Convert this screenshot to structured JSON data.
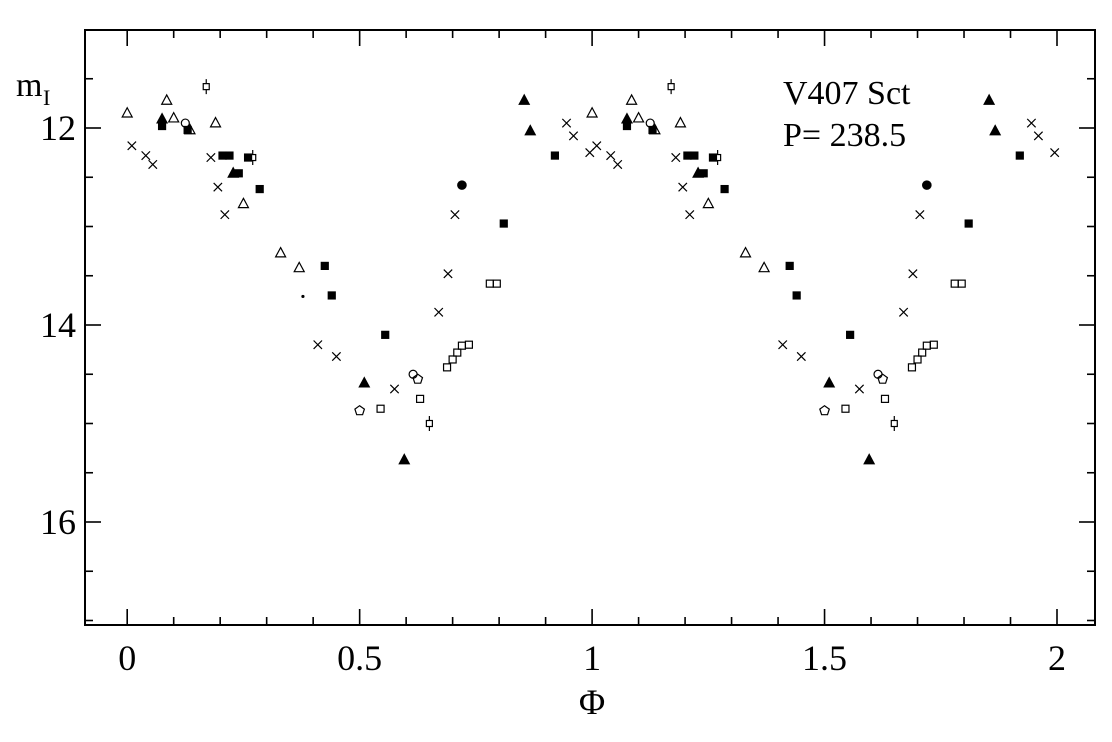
{
  "chart_data": {
    "type": "scatter",
    "title": "V407 Sct",
    "period_label": "P= 238.5",
    "xlabel": "Φ",
    "ylabel_main": "m",
    "ylabel_sub": "I",
    "colors": {
      "background": "#ffffff",
      "ink": "#000000"
    },
    "x_axis": {
      "lim": [
        -0.09,
        2.08
      ],
      "major_ticks": [
        0,
        0.5,
        1,
        1.5,
        2
      ],
      "major_labels": [
        "0",
        "0.5",
        "1",
        "1.5",
        "2"
      ],
      "minor_step": 0.1,
      "minor_range": [
        0,
        2
      ]
    },
    "y_axis": {
      "unit": "I-band magnitude (inverted axis)",
      "lim": [
        17.05,
        11.0
      ],
      "major_ticks": [
        12,
        14,
        16
      ],
      "major_labels": [
        "12",
        "14",
        "16"
      ],
      "minor_step": 0.5,
      "minor_range": [
        11.5,
        17.0
      ]
    },
    "grid": false,
    "legend": "none",
    "phase_duplicated": true,
    "series": [
      {
        "name": "open-triangle",
        "marker": "open-triangle",
        "points": [
          [
            0.0,
            11.85
          ],
          [
            0.085,
            11.72
          ],
          [
            0.1,
            11.9
          ],
          [
            0.135,
            12.02
          ],
          [
            0.19,
            11.95
          ],
          [
            0.25,
            12.77
          ],
          [
            0.33,
            13.27
          ],
          [
            0.37,
            13.42
          ]
        ]
      },
      {
        "name": "filled-triangle",
        "marker": "filled-triangle",
        "points": [
          [
            0.075,
            11.91
          ],
          [
            0.228,
            12.46
          ],
          [
            0.51,
            14.59
          ],
          [
            0.596,
            15.37
          ],
          [
            0.854,
            11.72
          ],
          [
            0.867,
            12.03
          ]
        ]
      },
      {
        "name": "filled-square",
        "marker": "filled-square",
        "points": [
          [
            0.075,
            11.98
          ],
          [
            0.13,
            12.02
          ],
          [
            0.205,
            12.28
          ],
          [
            0.22,
            12.28
          ],
          [
            0.24,
            12.46
          ],
          [
            0.26,
            12.3
          ],
          [
            0.285,
            12.62
          ],
          [
            0.425,
            13.4
          ],
          [
            0.44,
            13.7
          ],
          [
            0.555,
            14.1
          ],
          [
            0.81,
            12.97
          ],
          [
            0.92,
            12.28
          ]
        ]
      },
      {
        "name": "open-square",
        "marker": "open-square",
        "points": [
          [
            0.545,
            14.85
          ],
          [
            0.63,
            14.75
          ],
          [
            0.688,
            14.43
          ],
          [
            0.7,
            14.35
          ],
          [
            0.71,
            14.28
          ],
          [
            0.72,
            14.21
          ],
          [
            0.735,
            14.2
          ],
          [
            0.78,
            13.58
          ],
          [
            0.795,
            13.58
          ]
        ]
      },
      {
        "name": "cross",
        "marker": "cross",
        "points": [
          [
            0.01,
            12.18
          ],
          [
            0.04,
            12.28
          ],
          [
            0.055,
            12.37
          ],
          [
            0.18,
            12.3
          ],
          [
            0.195,
            12.6
          ],
          [
            0.21,
            12.88
          ],
          [
            0.41,
            14.2
          ],
          [
            0.45,
            14.32
          ],
          [
            0.575,
            14.65
          ],
          [
            0.67,
            13.87
          ],
          [
            0.69,
            13.48
          ],
          [
            0.705,
            12.88
          ],
          [
            0.945,
            11.95
          ],
          [
            0.96,
            12.08
          ],
          [
            0.995,
            12.25
          ]
        ]
      },
      {
        "name": "open-circle",
        "marker": "open-circle",
        "points": [
          [
            0.125,
            11.95
          ],
          [
            0.615,
            14.5
          ]
        ]
      },
      {
        "name": "filled-circle",
        "marker": "filled-circle",
        "points": [
          [
            0.72,
            12.58
          ]
        ]
      },
      {
        "name": "open-pentagon",
        "marker": "open-pentagon",
        "points": [
          [
            0.5,
            14.87
          ],
          [
            0.625,
            14.55
          ]
        ]
      },
      {
        "name": "open-square-errorbar",
        "marker": "open-square-errorbar",
        "points": [
          [
            0.17,
            11.58
          ],
          [
            0.27,
            12.3
          ],
          [
            0.65,
            15.0
          ]
        ]
      }
    ],
    "stray_dot": [
      0.378,
      13.71
    ]
  }
}
